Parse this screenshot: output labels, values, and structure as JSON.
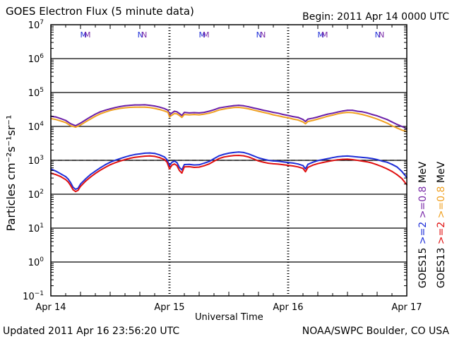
{
  "header": {
    "title": "GOES Electron Flux (5 minute data)",
    "begin": "Begin: 2011 Apr 14 0000 UTC"
  },
  "footer": {
    "updated": "Updated 2011 Apr 16 23:56:20 UTC",
    "agency": "NOAA/SWPC Boulder, CO USA"
  },
  "chart_data": {
    "type": "line",
    "title": "GOES Electron Flux (5 minute data)",
    "xlabel": "Universal Time",
    "ylabel": "Particles cm⁻²s⁻¹sr⁻¹",
    "y_scale": "log",
    "ylim": [
      0.1,
      10000000
    ],
    "xlim": [
      0,
      72
    ],
    "x_unit": "hours since 2011 Apr 14 0000 UTC",
    "x_ticks": [
      {
        "x": 0,
        "label": "Apr 14"
      },
      {
        "x": 24,
        "label": "Apr 15"
      },
      {
        "x": 48,
        "label": "Apr 16"
      },
      {
        "x": 72,
        "label": "Apr 17"
      }
    ],
    "y_ticks": [
      {
        "exp": 7,
        "base": "10",
        "sup": "7"
      },
      {
        "exp": 6,
        "base": "10",
        "sup": "6"
      },
      {
        "exp": 5,
        "base": "10",
        "sup": "5"
      },
      {
        "exp": 4,
        "base": "10",
        "sup": "4"
      },
      {
        "exp": 3,
        "base": "10",
        "sup": "3"
      },
      {
        "exp": 2,
        "base": "10",
        "sup": "2"
      },
      {
        "exp": 1,
        "base": "10",
        "sup": "1"
      },
      {
        "exp": 0,
        "base": "10",
        "sup": "0"
      },
      {
        "exp": -1,
        "base": "10",
        "sup": "−1"
      }
    ],
    "threshold_line": 1000,
    "grid": "horizontal lines at each decade",
    "legend": {
      "satellites": [
        {
          "name": "GOES15",
          "color": "#000000"
        },
        {
          "name": "GOES13",
          "color": "#000000"
        }
      ],
      "energy_labels": [
        {
          "text": ">=2",
          "color": "#1f2fd8"
        },
        {
          "text": ">=0.8",
          "color": "#7a2aa8"
        },
        {
          "text": ">=2",
          "color": "#e01010"
        },
        {
          "text": ">=0.8",
          "color": "#f0a020"
        }
      ],
      "unit": "MeV"
    },
    "markers": [
      {
        "x": 6.6,
        "text": "M",
        "color": "#1f2fd8"
      },
      {
        "x": 7.4,
        "text": "M",
        "color": "#7a2aa8"
      },
      {
        "x": 18.1,
        "text": "N",
        "color": "#1f2fd8"
      },
      {
        "x": 18.9,
        "text": "N",
        "color": "#7a2aa8"
      },
      {
        "x": 30.6,
        "text": "M",
        "color": "#1f2fd8"
      },
      {
        "x": 31.4,
        "text": "M",
        "color": "#7a2aa8"
      },
      {
        "x": 42.1,
        "text": "N",
        "color": "#1f2fd8"
      },
      {
        "x": 42.9,
        "text": "N",
        "color": "#7a2aa8"
      },
      {
        "x": 54.6,
        "text": "M",
        "color": "#1f2fd8"
      },
      {
        "x": 55.4,
        "text": "M",
        "color": "#7a2aa8"
      },
      {
        "x": 66.1,
        "text": "N",
        "color": "#1f2fd8"
      },
      {
        "x": 66.9,
        "text": "N",
        "color": "#7a2aa8"
      }
    ],
    "series": [
      {
        "name": "GOES15 >=0.8 MeV",
        "color": "#6a1fa8",
        "x": [
          0,
          1,
          2,
          3,
          4,
          5,
          6,
          7,
          8,
          9,
          10,
          11,
          12,
          13,
          14,
          15,
          16,
          17,
          18,
          19,
          20,
          21,
          22,
          23,
          23.7,
          24,
          24.5,
          25,
          25.5,
          26,
          26.5,
          27,
          28,
          29,
          30,
          31,
          32,
          33,
          34,
          35,
          36,
          37,
          38,
          39,
          40,
          41,
          42,
          43,
          44,
          45,
          46,
          47,
          48,
          49,
          50,
          51,
          51.5,
          52,
          53,
          54,
          55,
          56,
          57,
          58,
          59,
          60,
          61,
          62,
          63,
          64,
          65,
          66,
          67,
          68,
          69,
          70,
          71,
          72
        ],
        "y": [
          20000,
          19000,
          17000,
          15000,
          12000,
          10500,
          12500,
          15500,
          19000,
          23000,
          27000,
          30000,
          33000,
          36000,
          38500,
          40500,
          42000,
          43000,
          43000,
          43500,
          42000,
          40000,
          37000,
          33500,
          30000,
          22000,
          25000,
          28000,
          27000,
          24000,
          21000,
          26000,
          25000,
          25500,
          25000,
          26000,
          28000,
          31000,
          35000,
          37000,
          39000,
          41000,
          42000,
          40500,
          38000,
          35000,
          32500,
          30000,
          28000,
          26000,
          24500,
          22500,
          21000,
          19500,
          18500,
          16000,
          14000,
          16500,
          17500,
          19000,
          21000,
          23000,
          24500,
          26500,
          28500,
          30000,
          30000,
          28000,
          27000,
          25000,
          22500,
          20500,
          18000,
          16000,
          13500,
          11500,
          10000,
          8500
        ]
      },
      {
        "name": "GOES13 >=0.8 MeV",
        "color": "#f0a020",
        "x": [
          0,
          1,
          2,
          3,
          4,
          5,
          6,
          7,
          8,
          9,
          10,
          11,
          12,
          13,
          14,
          15,
          16,
          17,
          18,
          19,
          20,
          21,
          22,
          23,
          23.7,
          24,
          24.5,
          25,
          25.5,
          26,
          26.5,
          27,
          28,
          29,
          30,
          31,
          32,
          33,
          34,
          35,
          36,
          37,
          38,
          39,
          40,
          41,
          42,
          43,
          44,
          45,
          46,
          47,
          48,
          49,
          50,
          51,
          51.5,
          52,
          53,
          54,
          55,
          56,
          57,
          58,
          59,
          60,
          61,
          62,
          63,
          64,
          65,
          66,
          67,
          68,
          69,
          70,
          71,
          72
        ],
        "y": [
          17000,
          16000,
          14500,
          13000,
          10500,
          9500,
          11000,
          13500,
          16500,
          20000,
          23500,
          26500,
          29500,
          32000,
          34000,
          35500,
          36500,
          37000,
          37000,
          37000,
          36000,
          34000,
          31500,
          28500,
          26000,
          19000,
          21500,
          24000,
          23500,
          21000,
          18500,
          22500,
          22000,
          22500,
          22000,
          23000,
          24500,
          27000,
          30500,
          32500,
          34500,
          36000,
          36500,
          35000,
          33000,
          30500,
          28000,
          26000,
          24000,
          22000,
          20500,
          19000,
          18000,
          16500,
          15500,
          13500,
          12000,
          14000,
          15000,
          16500,
          18000,
          20000,
          21500,
          23500,
          25000,
          26000,
          25500,
          24000,
          22500,
          20500,
          18500,
          16500,
          14500,
          12500,
          10500,
          9000,
          7800,
          7000
        ]
      },
      {
        "name": "GOES15 >=2 MeV",
        "color": "#1f2fd8",
        "x": [
          0,
          1,
          2,
          3,
          3.5,
          4,
          4.5,
          5,
          5.5,
          6,
          7,
          8,
          9,
          10,
          11,
          12,
          13,
          14,
          15,
          16,
          17,
          18,
          19,
          20,
          21,
          22,
          23,
          23.5,
          24,
          24.5,
          25,
          25.5,
          26,
          26.5,
          27,
          28,
          29,
          30,
          31,
          32,
          33,
          34,
          35,
          36,
          37,
          38,
          39,
          40,
          41,
          42,
          43,
          44,
          45,
          46,
          47,
          48,
          49,
          50,
          51,
          51.5,
          52,
          53,
          54,
          55,
          56,
          57,
          58,
          59,
          60,
          61,
          62,
          63,
          64,
          65,
          66,
          67,
          68,
          69,
          70,
          71,
          72
        ],
        "y": [
          560,
          480,
          400,
          330,
          280,
          220,
          160,
          140,
          150,
          200,
          280,
          380,
          480,
          600,
          740,
          880,
          1000,
          1120,
          1250,
          1380,
          1480,
          1550,
          1620,
          1650,
          1600,
          1450,
          1250,
          1050,
          700,
          880,
          950,
          860,
          620,
          520,
          750,
          760,
          730,
          740,
          820,
          920,
          1120,
          1350,
          1500,
          1620,
          1700,
          1750,
          1700,
          1550,
          1350,
          1180,
          1080,
          1000,
          960,
          940,
          900,
          860,
          830,
          780,
          700,
          560,
          760,
          880,
          980,
          1050,
          1120,
          1200,
          1280,
          1320,
          1340,
          1300,
          1260,
          1220,
          1180,
          1130,
          1050,
          950,
          880,
          760,
          640,
          470,
          310
        ]
      },
      {
        "name": "GOES13 >=2 MeV",
        "color": "#e01010",
        "x": [
          0,
          1,
          2,
          3,
          3.5,
          4,
          4.5,
          5,
          5.5,
          6,
          7,
          8,
          9,
          10,
          11,
          12,
          13,
          14,
          15,
          16,
          17,
          18,
          19,
          20,
          21,
          22,
          23,
          23.5,
          24,
          24.5,
          25,
          25.5,
          26,
          26.5,
          27,
          28,
          29,
          30,
          31,
          32,
          33,
          34,
          35,
          36,
          37,
          38,
          39,
          40,
          41,
          42,
          43,
          44,
          45,
          46,
          47,
          48,
          49,
          50,
          51,
          51.5,
          52,
          53,
          54,
          55,
          56,
          57,
          58,
          59,
          60,
          61,
          62,
          63,
          64,
          65,
          66,
          67,
          68,
          69,
          70,
          71,
          72
        ],
        "y": [
          420,
          380,
          330,
          270,
          230,
          180,
          135,
          120,
          130,
          170,
          240,
          320,
          410,
          510,
          620,
          740,
          850,
          950,
          1050,
          1150,
          1230,
          1280,
          1330,
          1350,
          1310,
          1200,
          1050,
          880,
          560,
          720,
          780,
          700,
          500,
          420,
          640,
          650,
          620,
          630,
          690,
          780,
          940,
          1120,
          1250,
          1330,
          1380,
          1400,
          1360,
          1250,
          1100,
          960,
          880,
          820,
          790,
          770,
          740,
          710,
          680,
          640,
          580,
          460,
          620,
          720,
          800,
          860,
          920,
          980,
          1040,
          1070,
          1080,
          1050,
          1000,
          950,
          900,
          830,
          740,
          650,
          560,
          470,
          380,
          290,
          190
        ]
      }
    ]
  }
}
